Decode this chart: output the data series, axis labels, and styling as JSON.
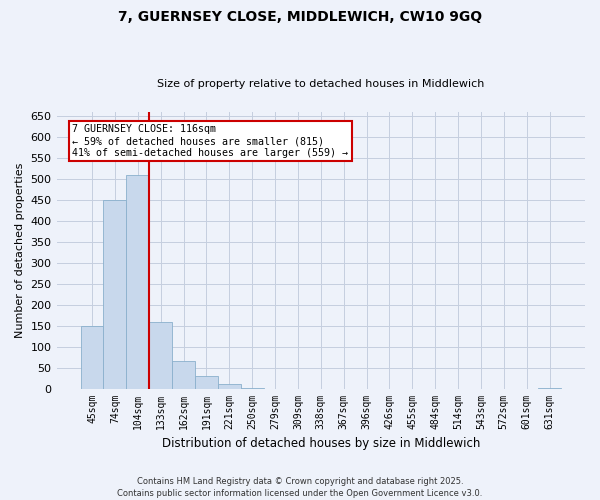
{
  "title": "7, GUERNSEY CLOSE, MIDDLEWICH, CW10 9GQ",
  "subtitle": "Size of property relative to detached houses in Middlewich",
  "xlabel": "Distribution of detached houses by size in Middlewich",
  "ylabel": "Number of detached properties",
  "bar_labels": [
    "45sqm",
    "74sqm",
    "104sqm",
    "133sqm",
    "162sqm",
    "191sqm",
    "221sqm",
    "250sqm",
    "279sqm",
    "309sqm",
    "338sqm",
    "367sqm",
    "396sqm",
    "426sqm",
    "455sqm",
    "484sqm",
    "514sqm",
    "543sqm",
    "572sqm",
    "601sqm",
    "631sqm"
  ],
  "bar_values": [
    150,
    450,
    510,
    160,
    65,
    30,
    10,
    2,
    0,
    0,
    0,
    0,
    0,
    0,
    0,
    0,
    0,
    0,
    0,
    0,
    2
  ],
  "bar_color": "#c8d8ec",
  "bar_edge_color": "#8ab0cc",
  "vline_color": "#cc0000",
  "annotation_title": "7 GUERNSEY CLOSE: 116sqm",
  "annotation_line1": "← 59% of detached houses are smaller (815)",
  "annotation_line2": "41% of semi-detached houses are larger (559) →",
  "annotation_box_facecolor": "#ffffff",
  "annotation_box_edgecolor": "#cc0000",
  "footer1": "Contains HM Land Registry data © Crown copyright and database right 2025.",
  "footer2": "Contains public sector information licensed under the Open Government Licence v3.0.",
  "ylim": [
    0,
    660
  ],
  "yticks": [
    0,
    50,
    100,
    150,
    200,
    250,
    300,
    350,
    400,
    450,
    500,
    550,
    600,
    650
  ],
  "bg_color": "#eef2fa",
  "grid_color": "#c5cedf",
  "title_fontsize": 10,
  "subtitle_fontsize": 8,
  "axis_label_fontsize": 8,
  "tick_fontsize": 7,
  "footer_fontsize": 6
}
